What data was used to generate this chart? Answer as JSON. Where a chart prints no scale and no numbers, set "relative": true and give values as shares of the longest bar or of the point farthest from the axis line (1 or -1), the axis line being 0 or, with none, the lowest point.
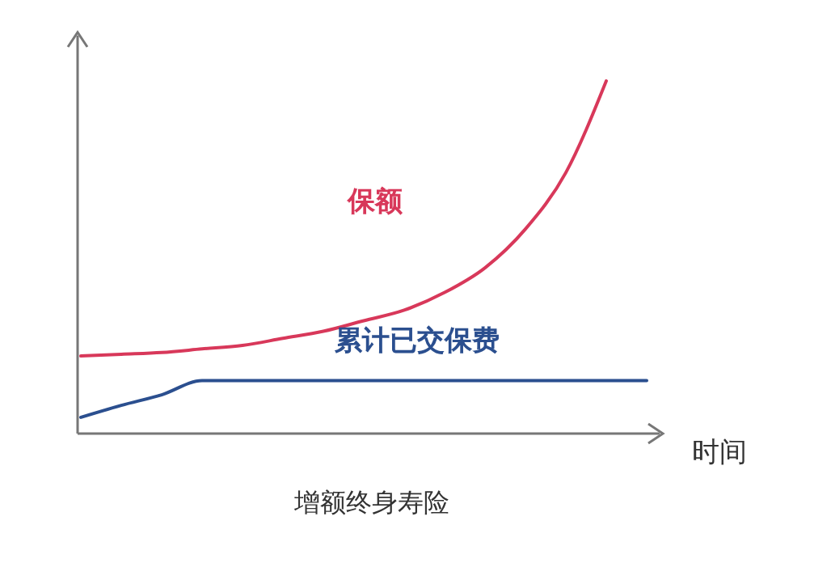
{
  "chart_data": {
    "type": "line",
    "title": "增额终身寿险",
    "xlabel": "时间",
    "relative": true,
    "legend": false,
    "grid": false,
    "categories": [
      null,
      null,
      null,
      null,
      null,
      null,
      null,
      null,
      null,
      null,
      null,
      null,
      null,
      null,
      null
    ],
    "series": [
      {
        "name": "保额",
        "color": "#d8385a",
        "values": [
          0.22,
          0.225,
          0.23,
          0.24,
          0.25,
          0.27,
          0.29,
          0.32,
          0.35,
          0.4,
          0.47,
          0.58,
          0.74,
          1,
          null
        ]
      },
      {
        "name": "累计已交保费",
        "color": "#2b4f8f",
        "values": [
          0.046,
          0.08,
          0.11,
          0.15,
          0.15,
          0.15,
          0.15,
          0.15,
          0.15,
          0.15,
          0.15,
          0.15,
          0.15,
          0.15,
          0.15
        ]
      }
    ]
  }
}
